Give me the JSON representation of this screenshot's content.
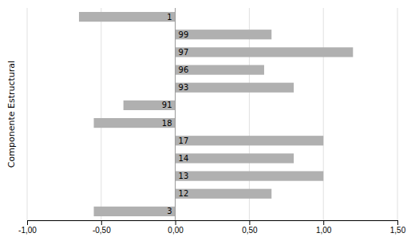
{
  "chart_data": {
    "type": "bar",
    "orientation": "horizontal",
    "categories": [
      "1",
      "99",
      "97",
      "96",
      "93",
      "91",
      "18",
      "17",
      "14",
      "13",
      "12",
      "3"
    ],
    "values": [
      -0.65,
      0.65,
      1.2,
      0.6,
      0.8,
      -0.35,
      -0.55,
      1.0,
      0.8,
      1.0,
      0.65,
      -0.55
    ],
    "color": "#B0B0B0",
    "xlim": [
      -1.0,
      1.5
    ],
    "xticks": [
      {
        "value": -1.0,
        "label": "-1,00"
      },
      {
        "value": -0.5,
        "label": "-0,50"
      },
      {
        "value": 0.0,
        "label": "0,00"
      },
      {
        "value": 0.5,
        "label": "0,50"
      },
      {
        "value": 1.0,
        "label": "1,00"
      },
      {
        "value": 1.5,
        "label": "1,50"
      }
    ],
    "ylabel": "Componente Estructural",
    "grid": true
  }
}
